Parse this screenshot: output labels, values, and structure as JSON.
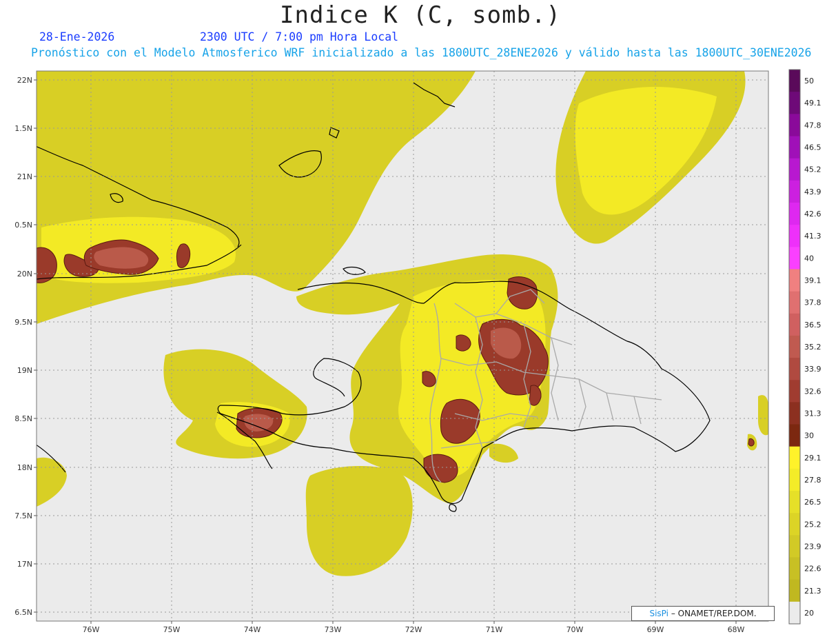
{
  "title": "Indice K (C, somb.)",
  "date": "28-Ene-2026",
  "time": "2300 UTC / 7:00 pm Hora Local",
  "description": "Pronóstico con el Modelo Atmosferico WRF inicializado a las 1800UTC_28ENE2026 y válido hasta las  1800UTC_30ENE2026",
  "credit": {
    "brand": "SisPi",
    "org": "– ONAMET/REP.DOM."
  },
  "lat_ticks": [
    "22N",
    "1.5N",
    "21N",
    "0.5N",
    "20N",
    "9.5N",
    "19N",
    "8.5N",
    "18N",
    "7.5N",
    "17N",
    "6.5N"
  ],
  "lon_ticks": [
    "76W",
    "75W",
    "74W",
    "73W",
    "72W",
    "71W",
    "70W",
    "69W",
    "68W"
  ],
  "colorbar": {
    "labels": [
      "50",
      "49.1",
      "47.8",
      "46.5",
      "45.2",
      "43.9",
      "42.6",
      "41.3",
      "40",
      "39.1",
      "37.8",
      "36.5",
      "35.2",
      "33.9",
      "32.6",
      "31.3",
      "30",
      "29.1",
      "27.8",
      "26.5",
      "25.2",
      "23.9",
      "22.6",
      "21.3",
      "20"
    ],
    "colors": [
      "#5a0a5a",
      "#6e0a78",
      "#8a0a9a",
      "#a010b8",
      "#b818d0",
      "#cc20e0",
      "#de28f0",
      "#ee30fa",
      "#fa40ff",
      "#f08080",
      "#e07070",
      "#d06060",
      "#c05a50",
      "#b04a40",
      "#a03c30",
      "#8c3020",
      "#7c2810",
      "#fff22a",
      "#f4ec28",
      "#e6e028",
      "#dcd426",
      "#d2ca26",
      "#c8c024",
      "#c0b820"
    ]
  }
}
